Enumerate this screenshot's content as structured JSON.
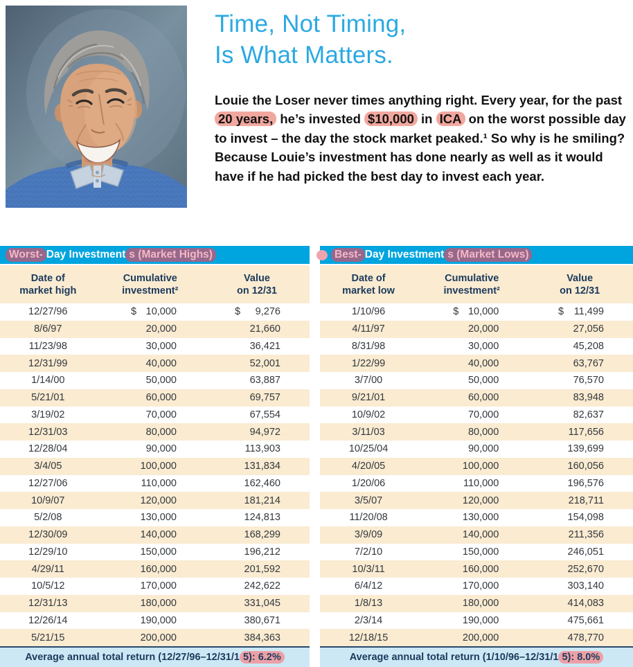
{
  "header": {
    "title_line1": "Time, Not Timing,",
    "title_line2": "Is What Matters.",
    "paragraph_segments": [
      {
        "t": "Louie the Loser never times anything right. Every year, for the past ",
        "hl": false
      },
      {
        "t": "20 years,",
        "hl": true
      },
      {
        "t": " he’s invested ",
        "hl": false
      },
      {
        "t": "$10,000",
        "hl": true
      },
      {
        "t": " in ",
        "hl": false
      },
      {
        "t": "ICA",
        "hl": true
      },
      {
        "t": " on the worst possible day to invest – the day the stock market peaked.¹ So why is he smiling? Because Louie’s investment has done nearly as well as it would have if he had picked the best day to invest each year.",
        "hl": false
      }
    ]
  },
  "photo": {
    "alt": "Portrait of Louie the Loser, a smiling gray-haired man in a blue sweater"
  },
  "colors": {
    "accent_blue": "#2BA9E1",
    "band_cyan": "#00A4DE",
    "row_cream": "#FAEBD1",
    "footer_blue": "#CDE8F5",
    "navy_text": "#1C3A5C",
    "highlight_pink": "#F2A79E"
  },
  "tables": [
    {
      "name": "worst-day",
      "band_segments": [
        {
          "t": "Worst-",
          "hl": true
        },
        {
          "t": "Day Investment",
          "hl": false
        },
        {
          "t": "s (Market Highs)",
          "hl": true
        }
      ],
      "columns": [
        [
          "Date of",
          "market high"
        ],
        [
          "Cumulative",
          "investment²"
        ],
        [
          "Value",
          "on 12/31"
        ]
      ],
      "dollar_row": 0,
      "rows": [
        [
          "12/27/96",
          "10,000",
          "9,276"
        ],
        [
          "8/6/97",
          "20,000",
          "21,660"
        ],
        [
          "11/23/98",
          "30,000",
          "36,421"
        ],
        [
          "12/31/99",
          "40,000",
          "52,001"
        ],
        [
          "1/14/00",
          "50,000",
          "63,887"
        ],
        [
          "5/21/01",
          "60,000",
          "69,757"
        ],
        [
          "3/19/02",
          "70,000",
          "67,554"
        ],
        [
          "12/31/03",
          "80,000",
          "94,972"
        ],
        [
          "12/28/04",
          "90,000",
          "113,903"
        ],
        [
          "3/4/05",
          "100,000",
          "131,834"
        ],
        [
          "12/27/06",
          "110,000",
          "162,460"
        ],
        [
          "10/9/07",
          "120,000",
          "181,214"
        ],
        [
          "5/2/08",
          "130,000",
          "124,813"
        ],
        [
          "12/30/09",
          "140,000",
          "168,299"
        ],
        [
          "12/29/10",
          "150,000",
          "196,212"
        ],
        [
          "4/29/11",
          "160,000",
          "201,592"
        ],
        [
          "10/5/12",
          "170,000",
          "242,622"
        ],
        [
          "12/31/13",
          "180,000",
          "331,045"
        ],
        [
          "12/26/14",
          "190,000",
          "380,671"
        ],
        [
          "5/21/15",
          "200,000",
          "384,363"
        ]
      ],
      "footer_segments": [
        {
          "t": "Average annual total return (12/27/96–12/31/1",
          "hl": false
        },
        {
          "t": "5): 6.2%",
          "hl": true
        }
      ]
    },
    {
      "name": "best-day",
      "band_segments": [
        {
          "t": "Best-",
          "hl": true
        },
        {
          "t": "Day Investment",
          "hl": false
        },
        {
          "t": "s (Market Lows)",
          "hl": true
        }
      ],
      "columns": [
        [
          "Date of",
          "market low"
        ],
        [
          "Cumulative",
          "investment²"
        ],
        [
          "Value",
          "on 12/31"
        ]
      ],
      "dollar_row": 0,
      "rows": [
        [
          "1/10/96",
          "10,000",
          "11,499"
        ],
        [
          "4/11/97",
          "20,000",
          "27,056"
        ],
        [
          "8/31/98",
          "30,000",
          "45,208"
        ],
        [
          "1/22/99",
          "40,000",
          "63,767"
        ],
        [
          "3/7/00",
          "50,000",
          "76,570"
        ],
        [
          "9/21/01",
          "60,000",
          "83,948"
        ],
        [
          "10/9/02",
          "70,000",
          "82,637"
        ],
        [
          "3/11/03",
          "80,000",
          "117,656"
        ],
        [
          "10/25/04",
          "90,000",
          "139,699"
        ],
        [
          "4/20/05",
          "100,000",
          "160,056"
        ],
        [
          "1/20/06",
          "110,000",
          "196,576"
        ],
        [
          "3/5/07",
          "120,000",
          "218,711"
        ],
        [
          "11/20/08",
          "130,000",
          "154,098"
        ],
        [
          "3/9/09",
          "140,000",
          "211,356"
        ],
        [
          "7/2/10",
          "150,000",
          "246,051"
        ],
        [
          "10/3/11",
          "160,000",
          "252,670"
        ],
        [
          "6/4/12",
          "170,000",
          "303,140"
        ],
        [
          "1/8/13",
          "180,000",
          "414,083"
        ],
        [
          "2/3/14",
          "190,000",
          "475,661"
        ],
        [
          "12/18/15",
          "200,000",
          "478,770"
        ]
      ],
      "footer_segments": [
        {
          "t": "Average annual total return (1/10/96–12/31/1",
          "hl": false
        },
        {
          "t": "5): 8.0%",
          "hl": true
        }
      ]
    }
  ]
}
